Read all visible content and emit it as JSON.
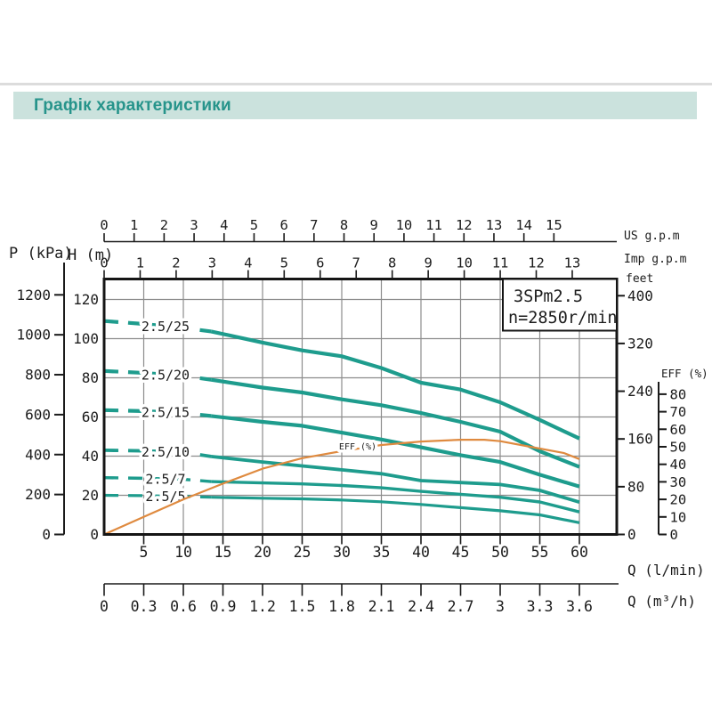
{
  "header": {
    "title": "Графік характеристики"
  },
  "axes": {
    "pressure_kpa": {
      "label": "P (kPa)",
      "ticks": [
        0,
        200,
        400,
        600,
        800,
        1000,
        1200
      ]
    },
    "head_m": {
      "label": "H (m)",
      "ticks": [
        0,
        20,
        40,
        60,
        80,
        100,
        120
      ]
    },
    "us_gpm": {
      "label": "US g.p.m",
      "ticks": [
        0,
        1,
        2,
        3,
        4,
        5,
        6,
        7,
        8,
        9,
        10,
        11,
        12,
        13,
        14,
        15
      ]
    },
    "imp_gpm": {
      "label": "Imp g.p.m",
      "ticks": [
        0,
        1,
        2,
        3,
        4,
        5,
        6,
        7,
        8,
        9,
        10,
        11,
        12,
        13
      ]
    },
    "feet": {
      "label": "feet",
      "ticks": [
        0,
        80,
        160,
        240,
        320,
        400
      ]
    },
    "eff_pct": {
      "label": "EFF (%)",
      "ticks": [
        0,
        10,
        20,
        30,
        40,
        50,
        60,
        70,
        80
      ]
    },
    "flow_lmin": {
      "label": "Q (l/min)",
      "ticks": [
        5,
        10,
        15,
        20,
        25,
        30,
        35,
        40,
        45,
        50,
        55,
        60
      ]
    },
    "flow_m3h": {
      "label": "Q (m³/h)",
      "ticks": [
        "0",
        "0.3",
        "0.6",
        "0.9",
        "1.2",
        "1.5",
        "1.8",
        "2.1",
        "2.4",
        "2.7",
        "3",
        "3.3",
        "3.6"
      ]
    }
  },
  "chart_data": {
    "type": "line",
    "title": "3SPm2.5",
    "subtitle": "n=2850r/min",
    "xlabel": "Q (l/min)",
    "xlabel_secondary": "Q (m³/h)",
    "ylabel_left": [
      "P (kPa)",
      "H (m)"
    ],
    "ylabel_right": [
      "feet",
      "EFF (%)"
    ],
    "xlim": [
      0,
      64.7
    ],
    "ylim": [
      0,
      130.5
    ],
    "grid": true,
    "curve_label_style": "inline",
    "series": [
      {
        "name": "2.5/25",
        "points": [
          [
            0,
            109
          ],
          [
            5,
            107.5
          ],
          [
            10,
            105.5
          ],
          [
            13.5,
            103.7
          ],
          [
            20,
            98
          ],
          [
            25,
            94
          ],
          [
            30,
            91
          ],
          [
            35,
            85
          ],
          [
            40,
            77.5
          ],
          [
            45,
            74
          ],
          [
            50,
            67.5
          ],
          [
            55,
            58.5
          ],
          [
            60,
            49
          ]
        ]
      },
      {
        "name": "2.5/20",
        "points": [
          [
            0,
            83.5
          ],
          [
            5,
            82.5
          ],
          [
            10,
            81
          ],
          [
            13.5,
            79
          ],
          [
            20,
            75
          ],
          [
            25,
            72.5
          ],
          [
            30,
            69
          ],
          [
            35,
            66
          ],
          [
            40,
            62
          ],
          [
            45,
            57.5
          ],
          [
            50,
            52.5
          ],
          [
            55,
            42.5
          ],
          [
            60,
            34.5
          ]
        ]
      },
      {
        "name": "2.5/15",
        "points": [
          [
            0,
            63.5
          ],
          [
            5,
            63
          ],
          [
            10,
            62
          ],
          [
            13.5,
            60.5
          ],
          [
            20,
            57.5
          ],
          [
            25,
            55.5
          ],
          [
            30,
            52
          ],
          [
            35,
            48.5
          ],
          [
            40,
            44.5
          ],
          [
            45,
            40.5
          ],
          [
            50,
            37
          ],
          [
            55,
            30.5
          ],
          [
            60,
            24.5
          ]
        ]
      },
      {
        "name": "2.5/10",
        "points": [
          [
            0,
            43
          ],
          [
            5,
            42.7
          ],
          [
            10,
            42
          ],
          [
            13.5,
            39.8
          ],
          [
            20,
            37
          ],
          [
            25,
            35
          ],
          [
            30,
            33
          ],
          [
            35,
            31
          ],
          [
            40,
            27.5
          ],
          [
            45,
            26.5
          ],
          [
            50,
            25.5
          ],
          [
            55,
            22.5
          ],
          [
            60,
            16.5
          ]
        ]
      },
      {
        "name": "2.5/7",
        "points": [
          [
            0,
            29
          ],
          [
            5,
            28.7
          ],
          [
            10,
            28.2
          ],
          [
            13.5,
            27
          ],
          [
            20,
            26.3
          ],
          [
            25,
            25.8
          ],
          [
            30,
            25
          ],
          [
            35,
            23.8
          ],
          [
            40,
            22
          ],
          [
            45,
            20.5
          ],
          [
            50,
            19
          ],
          [
            55,
            16.6
          ],
          [
            60,
            11.5
          ]
        ]
      },
      {
        "name": "2.5/5",
        "points": [
          [
            0,
            20
          ],
          [
            5,
            19.8
          ],
          [
            10,
            19.4
          ],
          [
            13.5,
            19
          ],
          [
            20,
            18.5
          ],
          [
            25,
            18.2
          ],
          [
            30,
            17.6
          ],
          [
            35,
            16.7
          ],
          [
            40,
            15.3
          ],
          [
            45,
            13.7
          ],
          [
            50,
            12.1
          ],
          [
            55,
            10
          ],
          [
            60,
            6
          ]
        ]
      }
    ],
    "efficiency_series": {
      "name": "EFF (%)",
      "unit": "%",
      "points": [
        [
          0,
          0
        ],
        [
          5,
          10
        ],
        [
          10,
          20
        ],
        [
          15,
          29
        ],
        [
          20,
          37.5
        ],
        [
          25,
          43.5
        ],
        [
          30,
          47.5
        ],
        [
          35,
          51
        ],
        [
          40,
          53
        ],
        [
          45,
          54
        ],
        [
          48,
          54
        ],
        [
          50,
          53.2
        ],
        [
          55,
          49
        ],
        [
          58,
          46.5
        ],
        [
          60,
          43
        ]
      ]
    }
  },
  "colors": {
    "curve": "#1e9c8d",
    "efficiency": "#df8a3f",
    "grid": "#8c8c8c",
    "axis": "#1a1a1a",
    "header_bg": "#cbe2dd",
    "header_text": "#27948b",
    "divider": "#dcdcdc"
  }
}
